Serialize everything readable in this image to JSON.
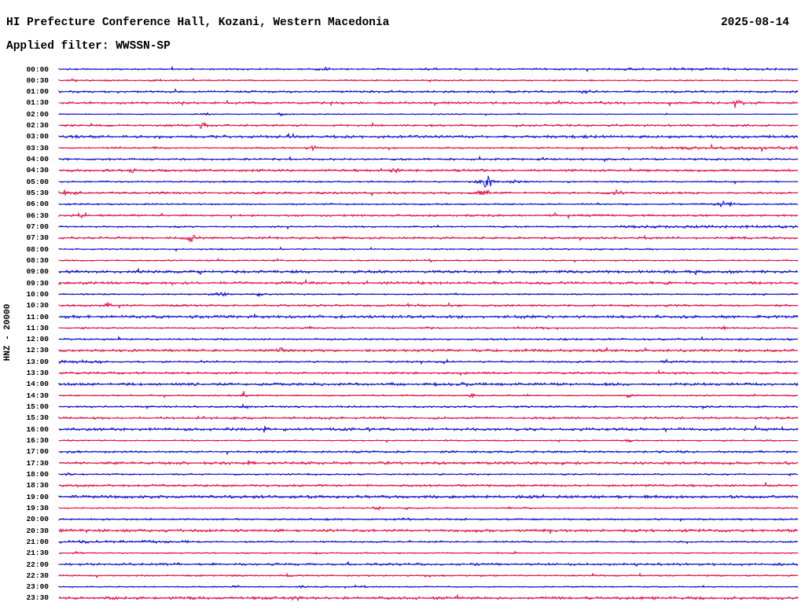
{
  "header": {
    "title": "HI Prefecture Conference Hall, Kozani, Western Macedonia",
    "date": "2025-08-14",
    "applied_filter": "Applied filter: WWSSN-SP"
  },
  "y_axis_label": "HNZ - 20000",
  "chart_data": {
    "type": "line",
    "subtype": "helicorder-seismogram",
    "title": "HI Prefecture Conference Hall, Kozani, Western Macedonia",
    "xlabel": "",
    "ylabel": "HNZ - 20000",
    "minutes_per_row": 30,
    "grid": false,
    "legend": "none",
    "colors": {
      "b": "#0f0fcd",
      "r": "#e0124d"
    },
    "row_time_labels": [
      "00:00",
      "00:30",
      "01:00",
      "01:30",
      "02:00",
      "02:30",
      "03:00",
      "03:30",
      "04:00",
      "04:30",
      "05:00",
      "05:30",
      "06:00",
      "06:30",
      "07:00",
      "07:30",
      "08:00",
      "08:30",
      "09:00",
      "09:30",
      "10:00",
      "10:30",
      "11:00",
      "11:30",
      "12:00",
      "12:30",
      "13:00",
      "13:30",
      "14:00",
      "14:30",
      "15:00",
      "15:30",
      "16:00",
      "16:30",
      "17:00",
      "17:30",
      "18:00",
      "18:30",
      "19:00",
      "19:30",
      "20:00",
      "20:30",
      "21:00",
      "21:30",
      "22:00",
      "22:30",
      "23:00",
      "23:30"
    ],
    "rows": [
      {
        "t": "00:00",
        "c": "b",
        "a": 1.1,
        "seg": [
          [
            0.72,
            1.0,
            1.6
          ]
        ],
        "ev": [
          [
            0.36,
            1.8,
            5
          ],
          [
            0.5,
            2.2,
            6
          ]
        ]
      },
      {
        "t": "00:30",
        "c": "r",
        "a": 0.9,
        "ev": [
          [
            0.02,
            2.0,
            3
          ],
          [
            0.07,
            2.0,
            3
          ],
          [
            0.13,
            1.8,
            3
          ],
          [
            0.25,
            1.5,
            3
          ],
          [
            0.57,
            1.5,
            2
          ]
        ]
      },
      {
        "t": "01:00",
        "c": "b",
        "a": 1.4,
        "ev": [
          [
            0.71,
            2.0,
            5
          ]
        ]
      },
      {
        "t": "01:30",
        "c": "r",
        "a": 1.5,
        "ev": [
          [
            0.92,
            2.5,
            4
          ]
        ]
      },
      {
        "t": "02:00",
        "c": "b",
        "a": 0.7,
        "seg": [
          [
            0.63,
            1.0,
            0.5
          ]
        ],
        "ev": [
          [
            0.2,
            1.8,
            4
          ],
          [
            0.3,
            1.5,
            3
          ]
        ]
      },
      {
        "t": "02:30",
        "c": "r",
        "a": 1.3,
        "ev": [
          [
            0.195,
            3.5,
            4
          ]
        ]
      },
      {
        "t": "03:00",
        "c": "b",
        "a": 1.8
      },
      {
        "t": "03:30",
        "c": "r",
        "a": 1.0,
        "seg": [
          [
            0.8,
            1.0,
            2.0
          ]
        ],
        "ev": [
          [
            0.08,
            1.8,
            3
          ],
          [
            0.13,
            1.8,
            3
          ],
          [
            0.345,
            2.5,
            4
          ]
        ]
      },
      {
        "t": "04:00",
        "c": "b",
        "a": 1.3
      },
      {
        "t": "04:30",
        "c": "r",
        "a": 1.5,
        "ev": [
          [
            0.1,
            2.5,
            5
          ],
          [
            0.455,
            2.0,
            4
          ]
        ]
      },
      {
        "t": "05:00",
        "c": "b",
        "a": 1.0,
        "ev": [
          [
            0.578,
            7.5,
            6
          ],
          [
            0.62,
            2.0,
            6
          ]
        ]
      },
      {
        "t": "05:30",
        "c": "r",
        "a": 1.3,
        "ev": [
          [
            0.008,
            3.0,
            4
          ],
          [
            0.025,
            2.5,
            5
          ],
          [
            0.572,
            5.0,
            6
          ],
          [
            0.755,
            2.5,
            5
          ]
        ]
      },
      {
        "t": "06:00",
        "c": "b",
        "a": 1.0,
        "ev": [
          [
            0.902,
            3.5,
            6
          ]
        ]
      },
      {
        "t": "06:30",
        "c": "r",
        "a": 1.3,
        "ev": [
          [
            0.032,
            3.2,
            4
          ]
        ]
      },
      {
        "t": "07:00",
        "c": "b",
        "a": 1.0,
        "seg": [
          [
            0.76,
            1.0,
            1.8
          ]
        ]
      },
      {
        "t": "07:30",
        "c": "r",
        "a": 1.5,
        "ev": [
          [
            0.178,
            3.8,
            5
          ]
        ]
      },
      {
        "t": "08:00",
        "c": "b",
        "a": 1.0
      },
      {
        "t": "08:30",
        "c": "r",
        "a": 0.9,
        "ev": [
          [
            0.5,
            1.8,
            4
          ]
        ]
      },
      {
        "t": "09:00",
        "c": "b",
        "a": 1.8,
        "ev": [
          [
            0.105,
            2.2,
            5
          ]
        ]
      },
      {
        "t": "09:30",
        "c": "r",
        "a": 1.7
      },
      {
        "t": "10:00",
        "c": "b",
        "a": 0.9,
        "ev": [
          [
            0.215,
            2.2,
            8
          ],
          [
            0.27,
            1.8,
            4
          ]
        ]
      },
      {
        "t": "10:30",
        "c": "r",
        "a": 1.3,
        "ev": [
          [
            0.065,
            2.5,
            4
          ]
        ]
      },
      {
        "t": "11:00",
        "c": "b",
        "a": 1.9
      },
      {
        "t": "11:30",
        "c": "r",
        "a": 0.9,
        "ev": [
          [
            0.03,
            1.8,
            3
          ],
          [
            0.34,
            1.6,
            3
          ],
          [
            0.5,
            1.6,
            3
          ],
          [
            0.66,
            1.6,
            3
          ],
          [
            0.9,
            1.8,
            3
          ]
        ]
      },
      {
        "t": "12:00",
        "c": "b",
        "a": 1.2
      },
      {
        "t": "12:30",
        "c": "r",
        "a": 1.7,
        "ev": [
          [
            0.3,
            2.8,
            4
          ]
        ]
      },
      {
        "t": "13:00",
        "c": "b",
        "a": 1.1,
        "seg": [
          [
            0.0,
            0.06,
            2.0
          ]
        ],
        "ev": [
          [
            0.82,
            1.8,
            4
          ]
        ]
      },
      {
        "t": "13:30",
        "c": "r",
        "a": 1.3
      },
      {
        "t": "14:00",
        "c": "b",
        "a": 1.8,
        "ev": [
          [
            0.55,
            2.0,
            3
          ]
        ]
      },
      {
        "t": "14:30",
        "c": "r",
        "a": 0.9,
        "ev": [
          [
            0.25,
            1.8,
            3
          ],
          [
            0.56,
            2.0,
            3
          ],
          [
            0.63,
            2.0,
            3
          ],
          [
            0.77,
            1.8,
            3
          ]
        ]
      },
      {
        "t": "15:00",
        "c": "b",
        "a": 1.2,
        "ev": [
          [
            0.25,
            2.0,
            6
          ]
        ]
      },
      {
        "t": "15:30",
        "c": "r",
        "a": 1.5
      },
      {
        "t": "16:00",
        "c": "b",
        "a": 1.8,
        "ev": [
          [
            0.42,
            1.8,
            3
          ]
        ]
      },
      {
        "t": "16:30",
        "c": "r",
        "a": 0.9,
        "ev": [
          [
            0.77,
            2.0,
            3
          ]
        ]
      },
      {
        "t": "17:00",
        "c": "b",
        "a": 1.4
      },
      {
        "t": "17:30",
        "c": "r",
        "a": 1.8,
        "ev": [
          [
            0.4,
            1.5,
            3
          ]
        ]
      },
      {
        "t": "18:00",
        "c": "b",
        "a": 1.0,
        "ev": [
          [
            0.015,
            1.8,
            3
          ],
          [
            0.42,
            1.6,
            3
          ]
        ]
      },
      {
        "t": "18:30",
        "c": "r",
        "a": 1.4
      },
      {
        "t": "19:00",
        "c": "b",
        "a": 1.9
      },
      {
        "t": "19:30",
        "c": "r",
        "a": 0.8,
        "ev": [
          [
            0.43,
            1.6,
            4
          ],
          [
            0.47,
            1.5,
            3
          ],
          [
            0.61,
            1.5,
            3
          ]
        ]
      },
      {
        "t": "20:00",
        "c": "b",
        "a": 1.1,
        "ev": [
          [
            0.47,
            1.8,
            4
          ]
        ]
      },
      {
        "t": "20:30",
        "c": "r",
        "a": 1.8
      },
      {
        "t": "21:00",
        "c": "b",
        "a": 1.0,
        "seg": [
          [
            0.0,
            0.175,
            1.9
          ]
        ]
      },
      {
        "t": "21:30",
        "c": "r",
        "a": 0.8,
        "ev": [
          [
            0.025,
            1.6,
            3
          ],
          [
            0.35,
            1.4,
            3
          ]
        ]
      },
      {
        "t": "22:00",
        "c": "b",
        "a": 1.6
      },
      {
        "t": "22:30",
        "c": "r",
        "a": 1.0,
        "ev": [
          [
            0.05,
            2.0,
            3
          ],
          [
            0.19,
            2.0,
            3
          ],
          [
            0.31,
            1.8,
            3
          ],
          [
            0.5,
            1.8,
            3
          ]
        ]
      },
      {
        "t": "23:00",
        "c": "b",
        "a": 0.8,
        "ev": [
          [
            0.24,
            1.5,
            3
          ],
          [
            0.33,
            1.5,
            3
          ],
          [
            0.41,
            1.5,
            3
          ]
        ]
      },
      {
        "t": "23:30",
        "c": "r",
        "a": 1.8,
        "ev": [
          [
            0.32,
            2.0,
            3
          ]
        ]
      }
    ]
  }
}
